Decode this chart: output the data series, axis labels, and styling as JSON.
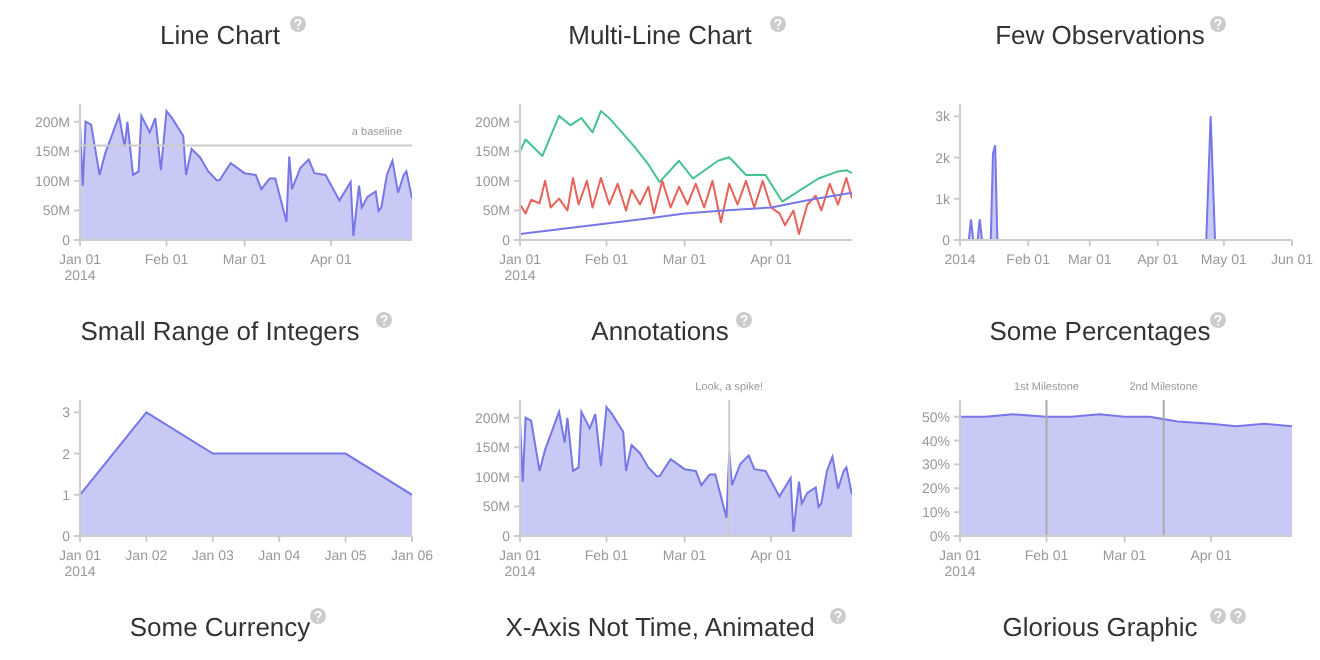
{
  "chart_data": [
    {
      "type": "area",
      "title": "Line Chart",
      "xlim": [
        "2014-01-01",
        "2014-04-30"
      ],
      "ylim": [
        0,
        230
      ],
      "xticks": [
        {
          "value": "2014-01-01",
          "label": "Jan 01\n2014"
        },
        {
          "value": "2014-02-01",
          "label": "Feb 01"
        },
        {
          "value": "2014-03-01",
          "label": "Mar 01"
        },
        {
          "value": "2014-04-01",
          "label": "Apr 01"
        }
      ],
      "yticks": [
        0,
        {
          "value": 50,
          "label": "50M"
        },
        {
          "value": 100,
          "label": "100M"
        },
        {
          "value": 150,
          "label": "150M"
        },
        {
          "value": 200,
          "label": "200M"
        }
      ],
      "ref_lines": [
        {
          "axis": "y",
          "value": 160,
          "label": "a baseline",
          "color": "#cccccc"
        }
      ],
      "series": [
        {
          "color": "#7777e8",
          "x": [
            "2014-01-01",
            "2014-01-02",
            "2014-01-03",
            "2014-01-05",
            "2014-01-08",
            "2014-01-10",
            "2014-01-15",
            "2014-01-17",
            "2014-01-18",
            "2014-01-20",
            "2014-01-22",
            "2014-01-23",
            "2014-01-26",
            "2014-01-28",
            "2014-01-30",
            "2014-02-01",
            "2014-02-03",
            "2014-02-07",
            "2014-02-08",
            "2014-02-10",
            "2014-02-13",
            "2014-02-16",
            "2014-02-19",
            "2014-02-20",
            "2014-02-24",
            "2014-03-01",
            "2014-03-05",
            "2014-03-07",
            "2014-03-10",
            "2014-03-12",
            "2014-03-16",
            "2014-03-17",
            "2014-03-18",
            "2014-03-21",
            "2014-03-24",
            "2014-03-26",
            "2014-03-30",
            "2014-04-04",
            "2014-04-08",
            "2014-04-09",
            "2014-04-11",
            "2014-04-12",
            "2014-04-14",
            "2014-04-17",
            "2014-04-18",
            "2014-04-19",
            "2014-04-21",
            "2014-04-23",
            "2014-04-25",
            "2014-04-27",
            "2014-04-28",
            "2014-04-30"
          ],
          "values": [
            194,
            92,
            200,
            195,
            110,
            146,
            210,
            158,
            200,
            110,
            116,
            210,
            182,
            206,
            118,
            218,
            206,
            176,
            110,
            154,
            140,
            116,
            101,
            101,
            130,
            113,
            110,
            86,
            104,
            104,
            31,
            141,
            86,
            122,
            136,
            113,
            110,
            67,
            98,
            7,
            92,
            55,
            73,
            82,
            49,
            55,
            110,
            134,
            80,
            110,
            116,
            70
          ]
        }
      ]
    },
    {
      "type": "line",
      "title": "Multi-Line Chart",
      "xlim": [
        "2014-01-01",
        "2014-04-30"
      ],
      "ylim": [
        0,
        230
      ],
      "xticks": [
        {
          "value": "2014-01-01",
          "label": "Jan 01\n2014"
        },
        {
          "value": "2014-02-01",
          "label": "Feb 01"
        },
        {
          "value": "2014-03-01",
          "label": "Mar 01"
        },
        {
          "value": "2014-04-01",
          "label": "Apr 01"
        }
      ],
      "yticks": [
        0,
        {
          "value": 50,
          "label": "50M"
        },
        {
          "value": 100,
          "label": "100M"
        },
        {
          "value": 150,
          "label": "150M"
        },
        {
          "value": 200,
          "label": "200M"
        }
      ],
      "series": [
        {
          "color": "#45c38e",
          "x": [
            "2014-01-01",
            "2014-01-03",
            "2014-01-09",
            "2014-01-15",
            "2014-01-19",
            "2014-01-23",
            "2014-01-27",
            "2014-01-30",
            "2014-02-02",
            "2014-02-11",
            "2014-02-16",
            "2014-02-20",
            "2014-02-27",
            "2014-03-04",
            "2014-03-13",
            "2014-03-17",
            "2014-03-23",
            "2014-03-30",
            "2014-04-05",
            "2014-04-12",
            "2014-04-18",
            "2014-04-25",
            "2014-04-28",
            "2014-04-30"
          ],
          "values": [
            150,
            170,
            142,
            210,
            194,
            206,
            182,
            218,
            206,
            158,
            128,
            98,
            134,
            104,
            134,
            140,
            110,
            110,
            65,
            86,
            104,
            116,
            118,
            113
          ]
        },
        {
          "color": "#e8625a",
          "x": [
            "2014-01-01",
            "2014-01-03",
            "2014-01-05",
            "2014-01-08",
            "2014-01-10",
            "2014-01-12",
            "2014-01-15",
            "2014-01-18",
            "2014-01-20",
            "2014-01-22",
            "2014-01-25",
            "2014-01-27",
            "2014-01-30",
            "2014-02-02",
            "2014-02-05",
            "2014-02-08",
            "2014-02-10",
            "2014-02-13",
            "2014-02-16",
            "2014-02-18",
            "2014-02-21",
            "2014-02-24",
            "2014-02-27",
            "2014-03-02",
            "2014-03-05",
            "2014-03-08",
            "2014-03-11",
            "2014-03-14",
            "2014-03-17",
            "2014-03-20",
            "2014-03-23",
            "2014-03-26",
            "2014-03-29",
            "2014-04-01",
            "2014-04-04",
            "2014-04-06",
            "2014-04-09",
            "2014-04-11",
            "2014-04-14",
            "2014-04-17",
            "2014-04-19",
            "2014-04-22",
            "2014-04-25",
            "2014-04-28",
            "2014-04-30"
          ],
          "values": [
            60,
            45,
            68,
            62,
            100,
            55,
            70,
            50,
            105,
            60,
            100,
            55,
            105,
            60,
            95,
            50,
            85,
            60,
            90,
            45,
            100,
            55,
            90,
            60,
            95,
            55,
            100,
            30,
            95,
            60,
            100,
            55,
            100,
            55,
            45,
            25,
            50,
            10,
            60,
            75,
            50,
            95,
            60,
            105,
            70
          ]
        },
        {
          "color": "#7777e8",
          "x": [
            "2014-01-01",
            "2014-01-15",
            "2014-02-01",
            "2014-02-15",
            "2014-03-01",
            "2014-03-15",
            "2014-04-01",
            "2014-04-15",
            "2014-04-30"
          ],
          "values": [
            10,
            18,
            28,
            36,
            45,
            50,
            55,
            68,
            80
          ]
        }
      ]
    },
    {
      "type": "area",
      "title": "Few Observations",
      "xlim": [
        "2014-01-01",
        "2014-06-01"
      ],
      "ylim": [
        0,
        3300
      ],
      "xticks": [
        {
          "value": "2014-01-01",
          "label": "2014"
        },
        {
          "value": "2014-02-01",
          "label": "Feb 01"
        },
        {
          "value": "2014-03-01",
          "label": "Mar 01"
        },
        {
          "value": "2014-04-01",
          "label": "Apr 01"
        },
        {
          "value": "2014-05-01",
          "label": "May 01"
        },
        {
          "value": "2014-06-01",
          "label": "Jun 01"
        }
      ],
      "yticks": [
        0,
        {
          "value": 1000,
          "label": "1k"
        },
        {
          "value": 2000,
          "label": "2k"
        },
        {
          "value": 3000,
          "label": "3k"
        }
      ],
      "series": [
        {
          "color": "#7777e8",
          "x": [
            "2014-01-01",
            "2014-01-05",
            "2014-01-06",
            "2014-01-07",
            "2014-01-09",
            "2014-01-10",
            "2014-01-11",
            "2014-01-15",
            "2014-01-16",
            "2014-01-17",
            "2014-01-18",
            "2014-04-23",
            "2014-04-25",
            "2014-04-27",
            "2014-06-01"
          ],
          "values": [
            0,
            0,
            500,
            0,
            0,
            500,
            0,
            0,
            2100,
            2300,
            0,
            0,
            3000,
            0,
            0
          ]
        }
      ]
    },
    {
      "type": "area",
      "title": "Small Range of Integers",
      "xlim": [
        "2014-01-01",
        "2014-01-06"
      ],
      "ylim": [
        0,
        3.3
      ],
      "xticks": [
        {
          "value": "2014-01-01",
          "label": "Jan 01\n2014"
        },
        {
          "value": "2014-01-02",
          "label": "Jan 02"
        },
        {
          "value": "2014-01-03",
          "label": "Jan 03"
        },
        {
          "value": "2014-01-04",
          "label": "Jan 04"
        },
        {
          "value": "2014-01-05",
          "label": "Jan 05"
        },
        {
          "value": "2014-01-06",
          "label": "Jan 06"
        }
      ],
      "yticks": [
        0,
        1,
        2,
        3
      ],
      "series": [
        {
          "color": "#7777e8",
          "x": [
            "2014-01-01",
            "2014-01-02",
            "2014-01-03",
            "2014-01-04",
            "2014-01-05",
            "2014-01-06"
          ],
          "values": [
            1,
            3,
            2,
            2,
            2,
            1
          ]
        }
      ]
    },
    {
      "type": "area",
      "title": "Annotations",
      "xlim": [
        "2014-01-01",
        "2014-04-30"
      ],
      "ylim": [
        0,
        230
      ],
      "xticks": [
        {
          "value": "2014-01-01",
          "label": "Jan 01\n2014"
        },
        {
          "value": "2014-02-01",
          "label": "Feb 01"
        },
        {
          "value": "2014-03-01",
          "label": "Mar 01"
        },
        {
          "value": "2014-04-01",
          "label": "Apr 01"
        }
      ],
      "yticks": [
        0,
        {
          "value": 50,
          "label": "50M"
        },
        {
          "value": 100,
          "label": "100M"
        },
        {
          "value": 150,
          "label": "150M"
        },
        {
          "value": 200,
          "label": "200M"
        }
      ],
      "ref_lines": [
        {
          "axis": "x",
          "value": "2014-03-17",
          "label": "Look, a spike!",
          "color": "#cccccc"
        }
      ],
      "series": [
        {
          "color": "#7777e8",
          "x": [
            "2014-01-01",
            "2014-01-02",
            "2014-01-03",
            "2014-01-05",
            "2014-01-08",
            "2014-01-10",
            "2014-01-15",
            "2014-01-17",
            "2014-01-18",
            "2014-01-20",
            "2014-01-22",
            "2014-01-23",
            "2014-01-26",
            "2014-01-28",
            "2014-01-30",
            "2014-02-01",
            "2014-02-03",
            "2014-02-07",
            "2014-02-08",
            "2014-02-10",
            "2014-02-13",
            "2014-02-16",
            "2014-02-19",
            "2014-02-20",
            "2014-02-24",
            "2014-03-01",
            "2014-03-05",
            "2014-03-07",
            "2014-03-10",
            "2014-03-12",
            "2014-03-16",
            "2014-03-17",
            "2014-03-18",
            "2014-03-21",
            "2014-03-24",
            "2014-03-26",
            "2014-03-30",
            "2014-04-04",
            "2014-04-08",
            "2014-04-09",
            "2014-04-11",
            "2014-04-12",
            "2014-04-14",
            "2014-04-17",
            "2014-04-18",
            "2014-04-19",
            "2014-04-21",
            "2014-04-23",
            "2014-04-25",
            "2014-04-27",
            "2014-04-28",
            "2014-04-30"
          ],
          "values": [
            194,
            92,
            200,
            195,
            110,
            146,
            210,
            158,
            200,
            110,
            116,
            210,
            182,
            206,
            118,
            218,
            206,
            176,
            110,
            154,
            140,
            116,
            101,
            101,
            130,
            113,
            110,
            86,
            104,
            104,
            31,
            141,
            86,
            122,
            136,
            113,
            110,
            67,
            98,
            7,
            92,
            55,
            73,
            82,
            49,
            55,
            110,
            134,
            80,
            110,
            116,
            70
          ]
        }
      ]
    },
    {
      "type": "area",
      "title": "Some Percentages",
      "xlim": [
        "2014-01-01",
        "2014-04-30"
      ],
      "ylim": [
        0,
        57
      ],
      "xticks": [
        {
          "value": "2014-01-01",
          "label": "Jan 01\n2014"
        },
        {
          "value": "2014-02-01",
          "label": "Feb 01"
        },
        {
          "value": "2014-03-01",
          "label": "Mar 01"
        },
        {
          "value": "2014-04-01",
          "label": "Apr 01"
        }
      ],
      "yticks": [
        {
          "value": 0,
          "label": "0%"
        },
        {
          "value": 10,
          "label": "10%"
        },
        {
          "value": 20,
          "label": "20%"
        },
        {
          "value": 30,
          "label": "30%"
        },
        {
          "value": 40,
          "label": "40%"
        },
        {
          "value": 50,
          "label": "50%"
        }
      ],
      "ref_lines": [
        {
          "axis": "x",
          "value": "2014-02-01",
          "label": "1st Milestone",
          "color": "#aaaaaa"
        },
        {
          "axis": "x",
          "value": "2014-03-15",
          "label": "2nd Milestone",
          "color": "#aaaaaa"
        }
      ],
      "series": [
        {
          "color": "#7777e8",
          "x": [
            "2014-01-01",
            "2014-01-10",
            "2014-01-20",
            "2014-02-01",
            "2014-02-10",
            "2014-02-20",
            "2014-03-01",
            "2014-03-10",
            "2014-03-20",
            "2014-04-01",
            "2014-04-10",
            "2014-04-20",
            "2014-04-30"
          ],
          "values": [
            50,
            50,
            51,
            50,
            50,
            51,
            50,
            50,
            48,
            47,
            46,
            47,
            46
          ]
        }
      ]
    },
    {
      "type": "other",
      "title": "Some Currency"
    },
    {
      "type": "other",
      "title": "X-Axis Not Time, Animated"
    },
    {
      "type": "other",
      "title": "Glorious Graphic"
    }
  ]
}
